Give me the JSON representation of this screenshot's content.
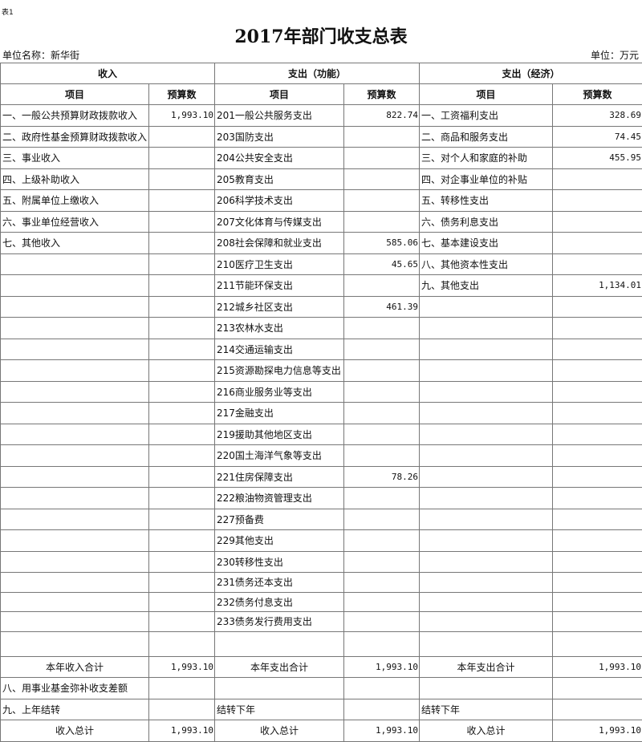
{
  "tag": "表1",
  "title": "2017年部门收支总表",
  "unit_name": "单位名称：新华街",
  "unit": "单位：万元",
  "sections": {
    "income": "收入",
    "func": "支出（功能）",
    "econ": "支出（经济）"
  },
  "col": {
    "item": "项目",
    "budget": "预算数"
  },
  "rows": [
    [
      "一、一般公共预算财政拨款收入",
      "1,993.10",
      "201一般公共服务支出",
      "822.74",
      "一、工资福利支出",
      "328.69"
    ],
    [
      "二、政府性基金预算财政拨款收入",
      "",
      "203国防支出",
      "",
      "二、商品和服务支出",
      "74.45"
    ],
    [
      "三、事业收入",
      "",
      "204公共安全支出",
      "",
      "三、对个人和家庭的补助",
      "455.95"
    ],
    [
      "四、上级补助收入",
      "",
      "205教育支出",
      "",
      "四、对企事业单位的补贴",
      ""
    ],
    [
      "五、附属单位上缴收入",
      "",
      "206科学技术支出",
      "",
      "五、转移性支出",
      ""
    ],
    [
      "六、事业单位经营收入",
      "",
      "207文化体育与传媒支出",
      "",
      "六、债务利息支出",
      ""
    ],
    [
      "七、其他收入",
      "",
      "208社会保障和就业支出",
      "585.06",
      "七、基本建设支出",
      ""
    ],
    [
      "",
      "",
      "210医疗卫生支出",
      "45.65",
      "八、其他资本性支出",
      ""
    ],
    [
      "",
      "",
      "211节能环保支出",
      "",
      "九、其他支出",
      "1,134.01"
    ],
    [
      "",
      "",
      "212城乡社区支出",
      "461.39",
      "",
      ""
    ],
    [
      "",
      "",
      "213农林水支出",
      "",
      "",
      ""
    ],
    [
      "",
      "",
      "214交通运输支出",
      "",
      "",
      ""
    ],
    [
      "",
      "",
      "215资源勘探电力信息等支出",
      "",
      "",
      ""
    ],
    [
      "",
      "",
      "216商业服务业等支出",
      "",
      "",
      ""
    ],
    [
      "",
      "",
      "217金融支出",
      "",
      "",
      ""
    ],
    [
      "",
      "",
      "219援助其他地区支出",
      "",
      "",
      ""
    ],
    [
      "",
      "",
      "220国土海洋气象等支出",
      "",
      "",
      ""
    ],
    [
      "",
      "",
      "221住房保障支出",
      "78.26",
      "",
      ""
    ],
    [
      "",
      "",
      "222粮油物资管理支出",
      "",
      "",
      ""
    ],
    [
      "",
      "",
      "227预备费",
      "",
      "",
      ""
    ],
    [
      "",
      "",
      "229其他支出",
      "",
      "",
      ""
    ],
    [
      "",
      "",
      "230转移性支出",
      "",
      "",
      ""
    ],
    [
      "",
      "",
      "231债务还本支出",
      "",
      "",
      ""
    ],
    [
      "",
      "",
      "232债务付息支出",
      "",
      "",
      ""
    ],
    [
      "",
      "",
      "233债务发行费用支出",
      "",
      "",
      ""
    ],
    [
      "",
      "",
      "",
      "",
      "",
      ""
    ]
  ],
  "totals": {
    "year": [
      "本年收入合计",
      "1,993.10",
      "本年支出合计",
      "1,993.10",
      "本年支出合计",
      "1,993.10"
    ],
    "fund": [
      "八、用事业基金弥补收支差额",
      "",
      "",
      "",
      "",
      ""
    ],
    "carry": [
      "九、上年结转",
      "",
      "结转下年",
      "",
      "结转下年",
      ""
    ],
    "grand": [
      "收入总计",
      "1,993.10",
      "收入总计",
      "1,993.10",
      "收入总计",
      "1,993.10"
    ]
  }
}
